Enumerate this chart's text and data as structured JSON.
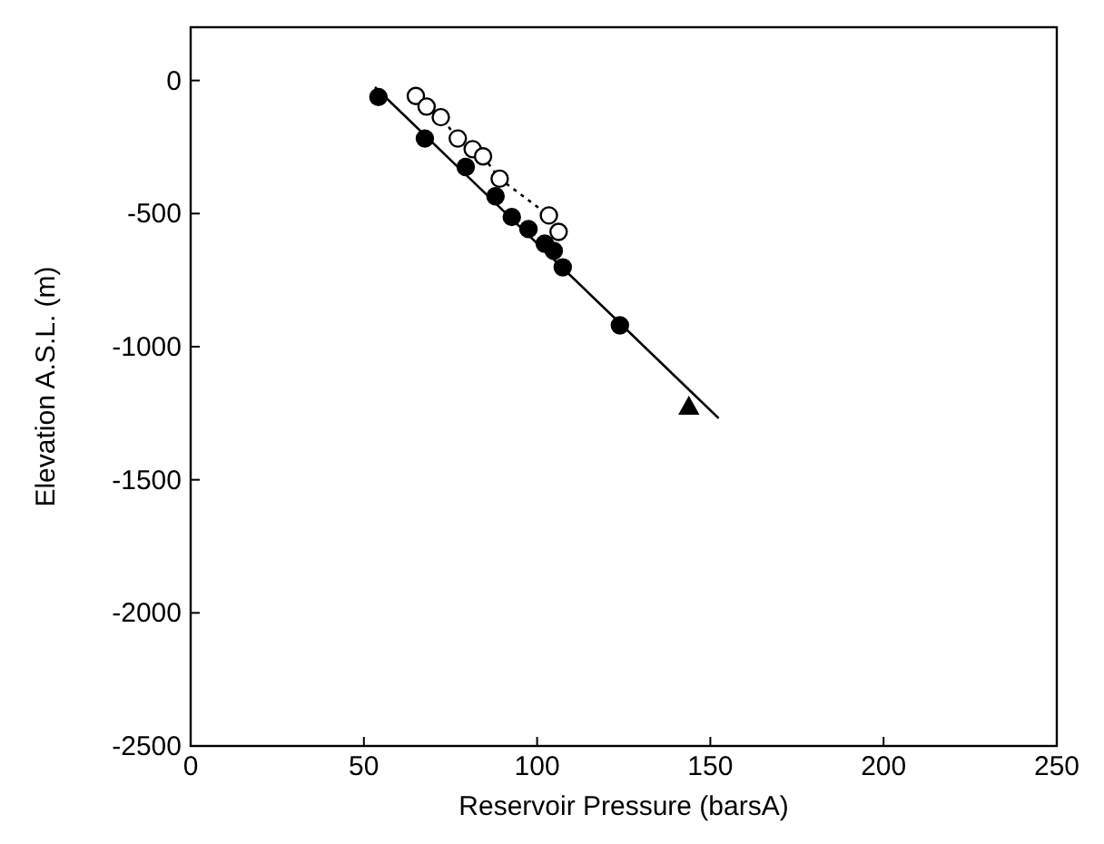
{
  "chart_data": {
    "type": "scatter",
    "xlabel": "Reservoir Pressure (barsA)",
    "ylabel": "Elevation A.S.L. (m)",
    "xlim": [
      0,
      250
    ],
    "xticks": [
      0,
      50,
      100,
      150,
      200,
      250
    ],
    "ylim": [
      -2500,
      200
    ],
    "yticks": [
      0,
      -500,
      -1000,
      -1500,
      -2000,
      -2500
    ],
    "grid": false,
    "series": [
      {
        "type": "line",
        "marker": "none",
        "line_style": "solid",
        "color": "#000000",
        "x": [
          53.2,
          152.4
        ],
        "values": [
          -25,
          -1269
        ]
      },
      {
        "marker": "circle",
        "color": "#000000",
        "x": [
          54.2,
          67.6,
          79.4,
          88,
          92.7,
          97.5,
          102.2,
          104.8,
          107.4,
          123.9
        ],
        "values": [
          -62,
          -218,
          -325,
          -435,
          -513,
          -558,
          -613,
          -640,
          -702,
          -920
        ]
      },
      {
        "type": "line",
        "marker": "circle",
        "line_style": "dotted",
        "color": "#000000",
        "x": [
          65,
          68.1,
          72.2,
          77.1,
          81.4,
          84.4,
          89.2,
          103.4,
          106.2
        ],
        "values": [
          -58,
          -98,
          -138,
          -218,
          -258,
          -285,
          -369,
          -507,
          -569
        ]
      },
      {
        "marker": "triangle",
        "color": "#000000",
        "x": [
          143.8
        ],
        "values": [
          -1225
        ]
      }
    ]
  }
}
